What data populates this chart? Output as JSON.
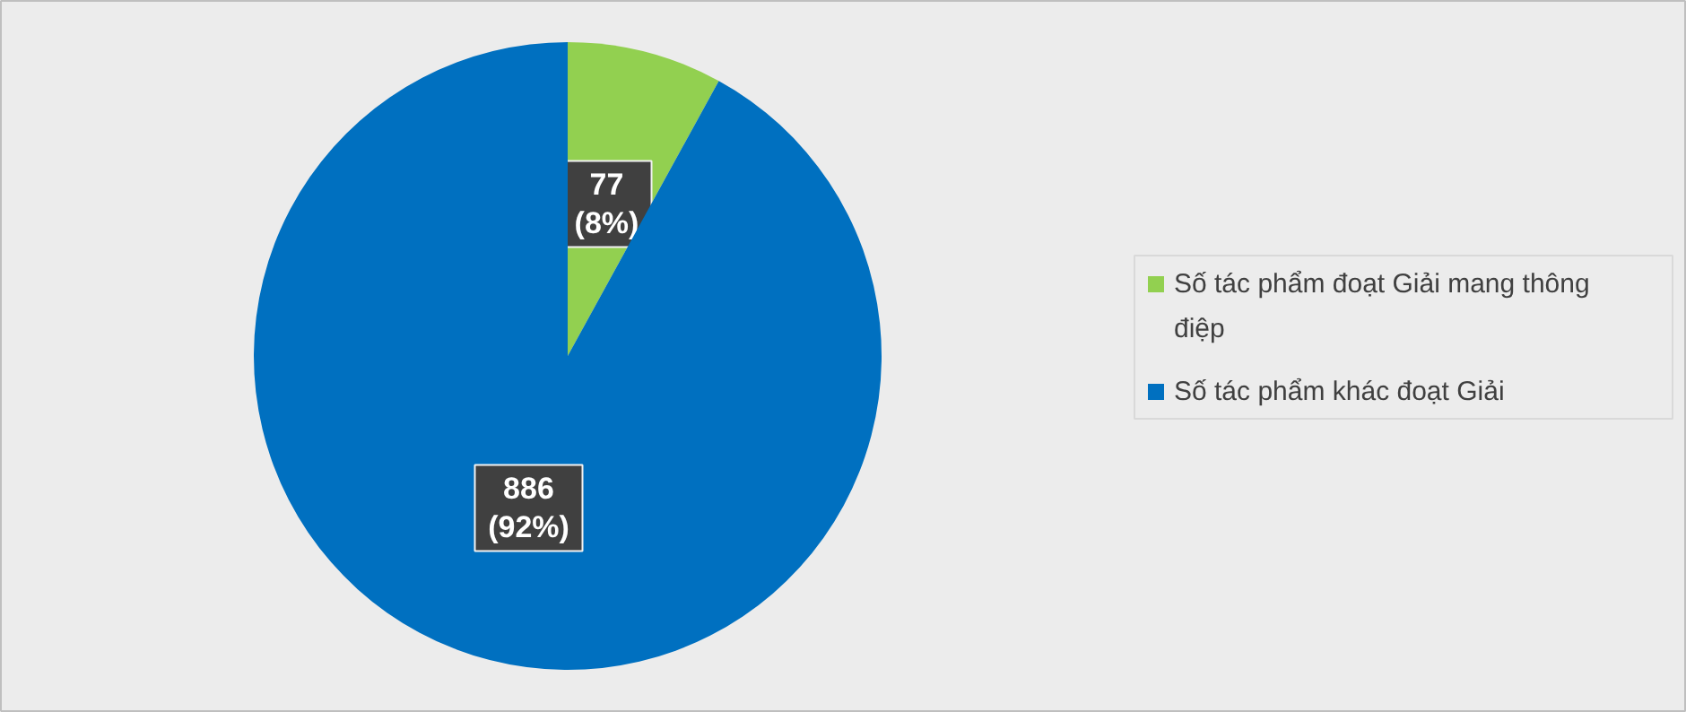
{
  "chart_data": {
    "type": "pie",
    "categories": [
      "Số tác phẩm đoạt Giải mang thông điệp",
      "Số tác phẩm khác đoạt Giải"
    ],
    "values": [
      77,
      886
    ],
    "colors": [
      "#92d050",
      "#0070c0"
    ],
    "value_labels": [
      "77\n(8%)",
      "886\n(92%)"
    ],
    "legend": "right"
  }
}
